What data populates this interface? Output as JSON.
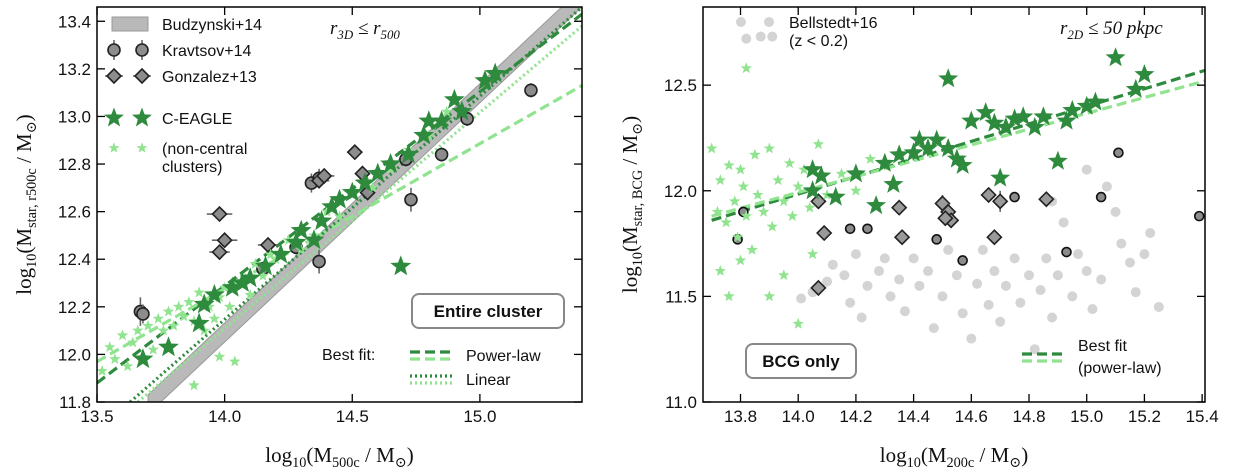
{
  "chart_data": [
    {
      "type": "scatter",
      "xlabel": [
        "log",
        "10",
        "(M",
        "500c",
        " / M",
        "⊙",
        ")"
      ],
      "ylabel": [
        "log",
        "10",
        "(M",
        "star, r500c",
        " / M",
        "⊙",
        ")"
      ],
      "annotation": [
        "r",
        "3D",
        " ≤ r",
        "500"
      ],
      "box_label": "Entire cluster",
      "fit_legend_title": "Best fit:",
      "xlim": [
        13.5,
        15.4
      ],
      "ylim": [
        11.8,
        13.46
      ],
      "xticks": [
        13.5,
        {
          "value": 14,
          "label": "14.0"
        },
        14.5,
        {
          "value": 15,
          "label": "15.0"
        }
      ],
      "yticks": [
        11.8,
        {
          "value": 12,
          "label": "12.0"
        },
        12.2,
        12.4,
        12.6,
        12.8,
        {
          "value": 13,
          "label": "13.0"
        },
        13.2,
        13.4
      ],
      "series": [
        {
          "name": "Budzynski+14",
          "marker": "band",
          "color": "#b9b9b9",
          "x": [
            13.7,
            15.4
          ],
          "ylow": [
            11.75,
            13.46
          ],
          "yhigh": [
            11.83,
            13.54
          ]
        },
        {
          "name": "Kravtsov+14",
          "marker": "circle",
          "size": 6,
          "color": "#8c8c8c",
          "edge": "#222",
          "x": [
            13.67,
            13.68,
            14.15,
            14.28,
            14.34,
            14.37,
            14.37,
            14.71,
            14.73,
            14.85,
            14.95,
            15.2
          ],
          "values": [
            12.18,
            12.17,
            12.36,
            12.45,
            12.72,
            12.74,
            12.39,
            12.82,
            12.65,
            12.84,
            12.99,
            13.11
          ],
          "yerr": [
            0.06,
            0.04,
            0.03,
            0.03,
            0.04,
            0.04,
            0.05,
            0.03,
            0.05,
            0.03,
            0.03,
            0.03
          ]
        },
        {
          "name": "Gonzalez+13",
          "marker": "diamond",
          "size": 7,
          "color": "#8c8c8c",
          "edge": "#222",
          "x": [
            13.98,
            14.0,
            13.98,
            14.17,
            14.37,
            14.39,
            14.51,
            14.54,
            14.56
          ],
          "values": [
            12.59,
            12.48,
            12.43,
            12.46,
            12.73,
            12.75,
            12.85,
            12.76,
            12.68
          ],
          "xerr": [
            0.05,
            0.05,
            0.04,
            0.04,
            0.04,
            0.04,
            0.03,
            0.03,
            0.03
          ]
        },
        {
          "name": "C-EAGLE",
          "marker": "star",
          "size": 11,
          "color": "#2e8b3e",
          "x": [
            13.68,
            13.78,
            13.9,
            13.92,
            13.96,
            14.03,
            14.07,
            14.1,
            14.16,
            14.22,
            14.28,
            14.3,
            14.35,
            14.38,
            14.42,
            14.45,
            14.5,
            14.55,
            14.6,
            14.65,
            14.72,
            14.78,
            14.8,
            14.85,
            14.9,
            14.93,
            15.02,
            15.06,
            14.69
          ],
          "values": [
            11.98,
            12.03,
            12.13,
            12.21,
            12.25,
            12.28,
            12.3,
            12.32,
            12.37,
            12.42,
            12.47,
            12.52,
            12.48,
            12.56,
            12.62,
            12.65,
            12.68,
            12.72,
            12.76,
            12.8,
            12.84,
            12.92,
            12.98,
            12.98,
            13.07,
            13.02,
            13.15,
            13.18,
            12.37
          ]
        },
        {
          "name": "(non-central\nclusters)",
          "marker": "star",
          "size": 6,
          "color": "#90e38f",
          "x": [
            13.52,
            13.55,
            13.57,
            13.6,
            13.62,
            13.64,
            13.66,
            13.7,
            13.72,
            13.74,
            13.76,
            13.78,
            13.8,
            13.82,
            13.84,
            13.86,
            13.88,
            13.9,
            13.92,
            13.94,
            13.96,
            13.98,
            14.0,
            14.02,
            14.05,
            14.08,
            14.1,
            14.12,
            14.15,
            14.18,
            14.2,
            14.25,
            14.3,
            14.35,
            14.4,
            14.45,
            14.5,
            14.58,
            14.65,
            14.72,
            14.8,
            14.87,
            13.88,
            13.98,
            14.04
          ],
          "values": [
            11.93,
            12.03,
            11.98,
            12.08,
            11.95,
            12.05,
            12.1,
            12.12,
            12.02,
            12.15,
            12.1,
            12.18,
            12.12,
            12.2,
            12.16,
            12.22,
            12.14,
            12.26,
            12.1,
            12.2,
            12.15,
            12.24,
            12.28,
            12.2,
            12.3,
            12.32,
            12.25,
            12.38,
            12.33,
            12.42,
            12.4,
            12.48,
            12.44,
            12.5,
            12.6,
            12.58,
            12.67,
            12.7,
            12.78,
            12.86,
            12.92,
            13.02,
            11.87,
            11.99,
            11.97
          ]
        }
      ],
      "fits": [
        {
          "name": "Power-law",
          "style": "dashed",
          "lines": [
            {
              "color": "#2e8b3e",
              "x": [
                13.5,
                15.4
              ],
              "y": [
                11.88,
                13.43
              ]
            },
            {
              "color": "#90e38f",
              "x": [
                13.5,
                15.4
              ],
              "y": [
                11.97,
                13.13
              ]
            }
          ]
        },
        {
          "name": "Linear",
          "style": "dotted",
          "lines": [
            {
              "color": "#2e8b3e",
              "x": [
                13.63,
                15.4
              ],
              "y": [
                11.8,
                13.46
              ]
            },
            {
              "color": "#90e38f",
              "x": [
                13.66,
                15.4
              ],
              "y": [
                11.8,
                13.38
              ]
            }
          ]
        }
      ]
    },
    {
      "type": "scatter",
      "xlabel": [
        "log",
        "10",
        "(M",
        "200c",
        " / M",
        "⊙",
        ")"
      ],
      "ylabel": [
        "log",
        "10",
        "(M",
        "star, BCG",
        " / M",
        "⊙",
        ")"
      ],
      "annotation": [
        "r",
        "2D",
        " ≤ 50 pkpc"
      ],
      "box_label": "BCG only",
      "xlim": [
        13.67,
        15.41
      ],
      "ylim": [
        11.0,
        12.87
      ],
      "xticks": [
        13.8,
        {
          "value": 14,
          "label": "14.0"
        },
        14.2,
        14.4,
        14.6,
        14.8,
        {
          "value": 15,
          "label": "15.0"
        },
        15.2,
        15.4
      ],
      "yticks": [
        {
          "value": 11,
          "label": "11.0"
        },
        11.5,
        {
          "value": 12,
          "label": "12.0"
        },
        12.5
      ],
      "series": [
        {
          "name": "Bellstedt+16\n(z < 0.2)",
          "marker": "circle",
          "size": 5,
          "color": "#d4d4d4",
          "x": [
            13.82,
            13.87,
            13.91,
            14.01,
            14.05,
            14.1,
            14.12,
            14.16,
            14.18,
            14.2,
            14.22,
            14.24,
            14.28,
            14.3,
            14.32,
            14.35,
            14.37,
            14.4,
            14.42,
            14.45,
            14.47,
            14.5,
            14.52,
            14.55,
            14.57,
            14.6,
            14.62,
            14.64,
            14.66,
            14.68,
            14.7,
            14.72,
            14.75,
            14.77,
            14.8,
            14.82,
            14.84,
            14.86,
            14.88,
            14.9,
            14.92,
            14.95,
            14.97,
            15.0,
            15.02,
            15.05,
            15.07,
            15.1,
            15.12,
            15.15,
            15.17,
            15.2,
            15.22,
            15.25,
            15.0,
            14.88
          ],
          "values": [
            12.72,
            12.73,
            12.73,
            11.49,
            11.52,
            11.57,
            11.65,
            11.6,
            11.47,
            11.7,
            11.4,
            11.55,
            11.62,
            11.68,
            11.5,
            11.58,
            11.43,
            11.68,
            11.55,
            11.62,
            11.35,
            11.5,
            11.72,
            11.6,
            11.42,
            11.3,
            11.56,
            11.72,
            11.46,
            11.62,
            11.38,
            11.55,
            11.68,
            11.47,
            11.6,
            11.25,
            11.53,
            11.68,
            11.4,
            11.6,
            11.85,
            11.5,
            11.7,
            11.62,
            11.44,
            11.58,
            12.02,
            11.9,
            11.75,
            11.66,
            11.52,
            11.7,
            11.8,
            11.45,
            12.1,
            11.95
          ]
        },
        {
          "marker": "star",
          "size": 6,
          "color": "#90e38f",
          "x": [
            13.7,
            13.72,
            13.73,
            13.75,
            13.76,
            13.78,
            13.79,
            13.8,
            13.81,
            13.82,
            13.84,
            13.85,
            13.86,
            13.88,
            13.9,
            13.91,
            13.93,
            13.95,
            13.97,
            13.98,
            14.0,
            14.02,
            14.04,
            14.07,
            14.1,
            14.15,
            14.2,
            13.73,
            13.76,
            13.82,
            13.9,
            14.0,
            14.05,
            13.95,
            13.8,
            14.25
          ],
          "values": [
            12.2,
            11.9,
            12.05,
            11.85,
            12.12,
            11.95,
            11.78,
            12.1,
            12.02,
            11.88,
            11.72,
            12.17,
            11.98,
            11.9,
            12.2,
            11.83,
            12.05,
            11.95,
            12.13,
            11.88,
            12.02,
            12.1,
            11.92,
            12.22,
            11.98,
            12.08,
            12.0,
            11.62,
            11.5,
            12.58,
            11.5,
            11.37,
            11.7,
            11.6,
            11.67,
            12.15
          ]
        },
        {
          "marker": "circle",
          "size": 4.5,
          "color": "#8c8c8c",
          "edge": "#111",
          "x": [
            13.81,
            13.79,
            14.24,
            14.48,
            14.57,
            14.75,
            15.05,
            14.93,
            15.11,
            15.39,
            14.18
          ],
          "values": [
            11.9,
            11.77,
            11.82,
            11.77,
            11.67,
            11.97,
            11.97,
            11.71,
            12.18,
            11.88,
            11.82
          ]
        },
        {
          "marker": "diamond",
          "size": 7,
          "color": "#9a9a9a",
          "edge": "#222",
          "x": [
            14.07,
            14.09,
            14.07,
            14.35,
            14.36,
            14.5,
            14.52,
            14.53,
            14.51,
            14.66,
            14.7,
            14.68,
            14.86
          ],
          "values": [
            11.95,
            11.8,
            11.54,
            11.92,
            11.78,
            11.94,
            11.9,
            11.86,
            11.87,
            11.98,
            11.95,
            11.78,
            11.96
          ],
          "yerr": [
            null,
            null,
            null,
            null,
            null,
            0.04,
            0.04,
            null,
            null,
            null,
            0.05,
            null,
            null
          ]
        },
        {
          "marker": "star",
          "size": 10.5,
          "color": "#2e8b3e",
          "x": [
            14.05,
            14.05,
            14.08,
            14.13,
            14.2,
            14.27,
            14.3,
            14.33,
            14.35,
            14.4,
            14.42,
            14.45,
            14.48,
            14.52,
            14.52,
            14.55,
            14.57,
            14.6,
            14.65,
            14.68,
            14.7,
            14.75,
            14.78,
            14.82,
            14.85,
            14.9,
            14.93,
            14.95,
            15.0,
            15.03,
            15.1,
            15.17,
            15.2,
            14.72
          ],
          "values": [
            12.1,
            12.0,
            12.07,
            11.97,
            12.08,
            11.93,
            12.13,
            12.03,
            12.17,
            12.18,
            12.24,
            12.2,
            12.24,
            12.53,
            12.2,
            12.15,
            12.12,
            12.33,
            12.37,
            12.32,
            12.06,
            12.34,
            12.35,
            12.3,
            12.35,
            12.14,
            12.33,
            12.38,
            12.4,
            12.42,
            12.63,
            12.48,
            12.55,
            12.3
          ]
        }
      ],
      "fits": [
        {
          "name": "Best fit\n(power-law)",
          "style": "dashed",
          "lines": [
            {
              "color": "#2e8b3e",
              "x": [
                13.7,
                15.41
              ],
              "y": [
                11.86,
                12.57
              ]
            },
            {
              "color": "#90e38f",
              "x": [
                13.7,
                15.41
              ],
              "y": [
                11.88,
                12.52
              ]
            }
          ]
        }
      ]
    }
  ]
}
